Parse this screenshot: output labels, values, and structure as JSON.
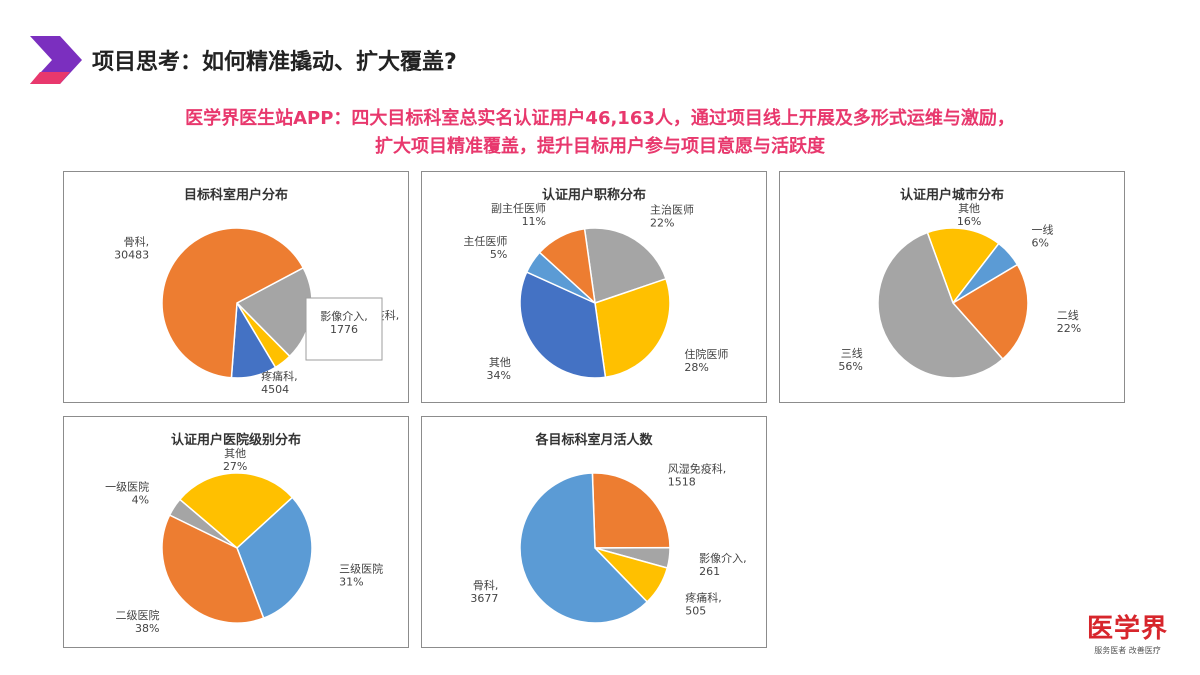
{
  "header": {
    "title": "项目思考：如何精准撬动、扩大覆盖?",
    "colors": {
      "logo_purple": "#7b2fbf",
      "logo_pink": "#e8386d"
    }
  },
  "headline": {
    "line1": "医学界医生站APP：四大目标科室总实名认证用户46,163人，通过项目线上开展及多形式运维与激励，",
    "line2": "扩大项目精准覆盖，提升目标用户参与项目意愿与活跃度",
    "color": "#e8386d"
  },
  "brand": {
    "name": "医学界",
    "slogan": "服务医者 改善医疗",
    "color": "#d7262c"
  },
  "chart_data": [
    {
      "id": "dept",
      "type": "pie",
      "title": "目标科室用户分布",
      "slices": [
        {
          "label": "风湿免疫科, 9400",
          "value": 9400,
          "color": "#a5a5a5"
        },
        {
          "label": "影像介入, 1776",
          "value": 1776,
          "color": "#ffc000"
        },
        {
          "label": "疼痛科, 4504",
          "value": 4504,
          "color": "#4472c4"
        },
        {
          "label": "骨科, 30483",
          "value": 30483,
          "color": "#ed7d31"
        }
      ]
    },
    {
      "id": "title",
      "type": "pie",
      "title": "认证用户职称分布",
      "slices": [
        {
          "label": "主治医师 22%",
          "value": 22,
          "color": "#a5a5a5"
        },
        {
          "label": "住院医师 28%",
          "value": 28,
          "color": "#ffc000"
        },
        {
          "label": "其他 34%",
          "value": 34,
          "color": "#4472c4"
        },
        {
          "label": "主任医师 5%",
          "value": 5,
          "color": "#5b9bd5"
        },
        {
          "label": "副主任医师 11%",
          "value": 11,
          "color": "#ed7d31"
        }
      ]
    },
    {
      "id": "city",
      "type": "pie",
      "title": "认证用户城市分布",
      "slices": [
        {
          "label": "其他 16%",
          "value": 16,
          "color": "#ffc000"
        },
        {
          "label": "一线 6%",
          "value": 6,
          "color": "#5b9bd5"
        },
        {
          "label": "二线 22%",
          "value": 22,
          "color": "#ed7d31"
        },
        {
          "label": "三线 56%",
          "value": 56,
          "color": "#a5a5a5"
        }
      ]
    },
    {
      "id": "hospital",
      "type": "pie",
      "title": "认证用户医院级别分布",
      "slices": [
        {
          "label": "一级医院 4%",
          "value": 4,
          "color": "#a5a5a5"
        },
        {
          "label": "其他 27%",
          "value": 27,
          "color": "#ffc000"
        },
        {
          "label": "三级医院 31%",
          "value": 31,
          "color": "#5b9bd5"
        },
        {
          "label": "二级医院 38%",
          "value": 38,
          "color": "#ed7d31"
        }
      ]
    },
    {
      "id": "mau",
      "type": "pie",
      "title": "各目标科室月活人数",
      "slices": [
        {
          "label": "风湿免疫科, 1518",
          "value": 1518,
          "color": "#ed7d31"
        },
        {
          "label": "影像介入, 261",
          "value": 261,
          "color": "#a5a5a5"
        },
        {
          "label": "疼痛科, 505",
          "value": 505,
          "color": "#ffc000"
        },
        {
          "label": "骨科, 3677",
          "value": 3677,
          "color": "#5b9bd5"
        }
      ]
    }
  ]
}
